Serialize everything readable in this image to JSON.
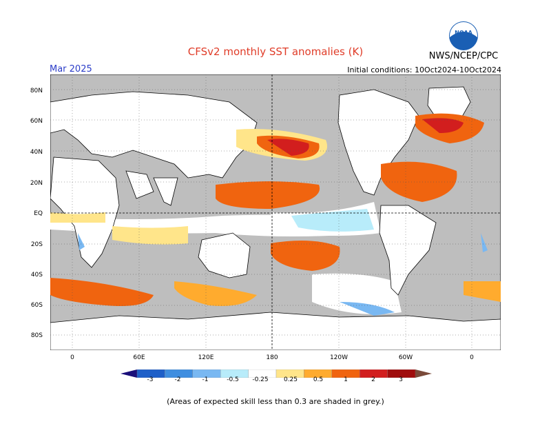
{
  "title": "CFSv2 monthly SST anomalies (K)",
  "valid_month": "Mar 2025",
  "initial_conditions": "Initial conditions: 10Oct2024-10Oct2024",
  "agency": "NWS/NCEP/CPC",
  "logo_text": "NOAA",
  "lat_labels": [
    "80N",
    "60N",
    "40N",
    "20N",
    "EQ",
    "20S",
    "40S",
    "60S",
    "80S"
  ],
  "lon_labels": [
    "0",
    "60E",
    "120E",
    "180",
    "120W",
    "60W",
    "0"
  ],
  "colorbar": {
    "labels": [
      "-3",
      "-2",
      "-1",
      "-0.5",
      "-0.25",
      "0.25",
      "0.5",
      "1",
      "2",
      "3"
    ],
    "colors": [
      "#1a0f7a",
      "#1e5fc8",
      "#3f8ee0",
      "#79b8f2",
      "#b8ecfa",
      "#ffffff",
      "#ffe58a",
      "#ffab2e",
      "#f0640f",
      "#d21e1e",
      "#a00d0d",
      "#7a4a3a"
    ]
  },
  "legend_note": "(Areas of expected skill less than 0.3 are shaded in grey.)",
  "colors": {
    "land": "#ffffff",
    "low_skill": "#bebebe",
    "title": "#e03c28",
    "valid": "#2a3cc8"
  }
}
